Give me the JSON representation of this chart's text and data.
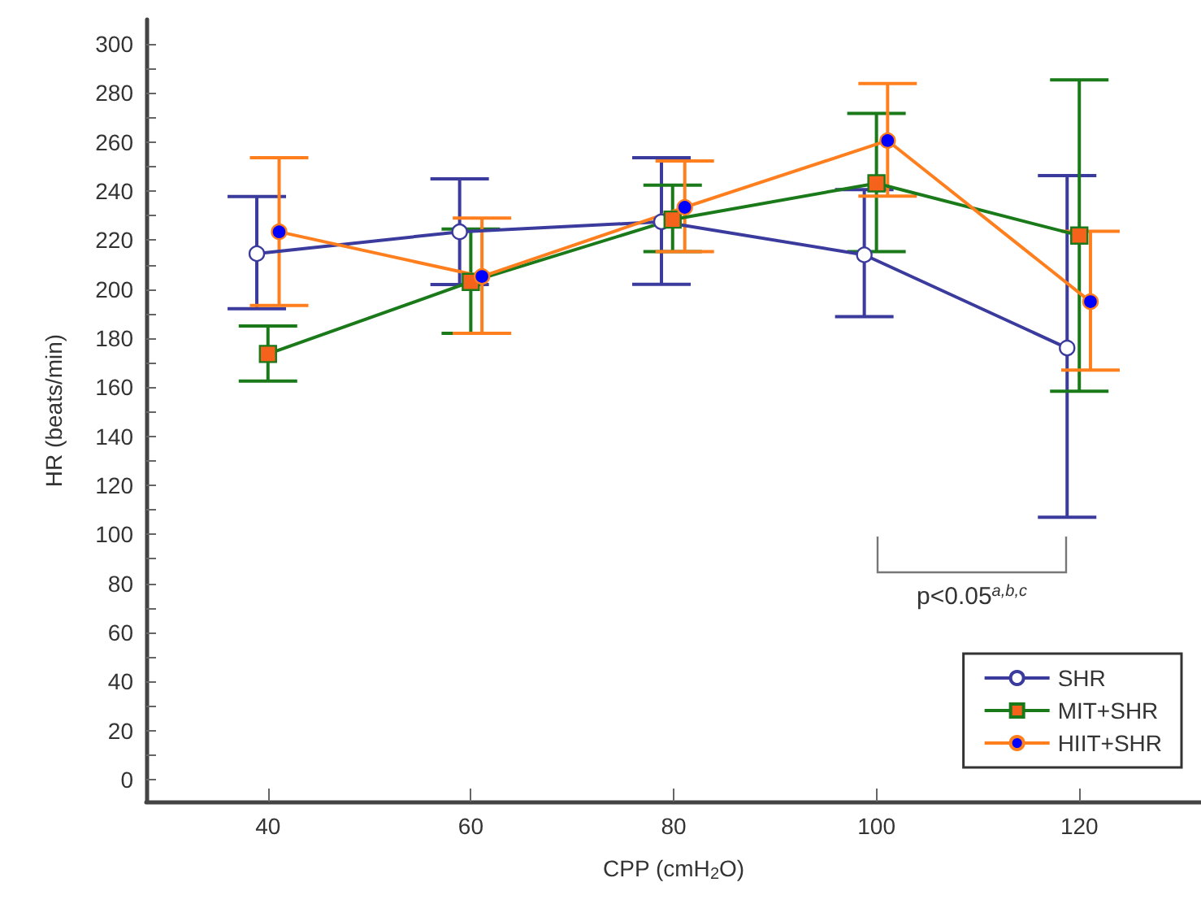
{
  "chart_data": {
    "type": "line",
    "xlabel": "CPP (cmH$_{2}$O)",
    "ylabel": "HR (beats/min)",
    "xlim": [
      28,
      132
    ],
    "xticks": [
      40,
      60,
      80,
      100,
      120
    ],
    "ylim": [
      -9,
      310
    ],
    "yticks": [
      0,
      {
        "value": 10,
        "label": null
      },
      20,
      {
        "value": 30,
        "label": null
      },
      40,
      {
        "value": 50,
        "label": null
      },
      60,
      {
        "value": 70,
        "label": null
      },
      80,
      {
        "value": 90,
        "label": null
      },
      100,
      {
        "value": 110,
        "label": null
      },
      120,
      {
        "value": 130,
        "label": null
      },
      140,
      {
        "value": 150,
        "label": null
      },
      160,
      {
        "value": 170,
        "label": null
      },
      180,
      {
        "value": 190,
        "label": null
      },
      200,
      {
        "value": 210,
        "label": null
      },
      220,
      {
        "value": 230,
        "label": null
      },
      240,
      {
        "value": 250,
        "label": null
      },
      260,
      {
        "value": 270,
        "label": null
      },
      280,
      {
        "value": 290,
        "label": null
      },
      300
    ],
    "grid": false,
    "legend": "bottom right",
    "line_style": "solid",
    "series": [
      {
        "name": "SHR",
        "color": "#3b3b9e",
        "marker": "circle",
        "colors": [
          "#ffffff",
          "#ffffff",
          "#ffffff",
          "#ffffff",
          "#ffffff"
        ],
        "x": [
          38.9,
          58.9,
          78.8,
          98.8,
          118.8
        ],
        "values": [
          214.5,
          223.4,
          227.5,
          214,
          176
        ],
        "errors": [
          [
            192,
            237.8
          ],
          [
            201.9,
            245
          ],
          [
            202,
            253.6
          ],
          [
            188.8,
            240.6
          ],
          [
            107,
            246.3
          ]
        ]
      },
      {
        "name": "MIT+SHR",
        "color": "#1a7a1a",
        "marker": "square",
        "colors": [
          "#f4621c",
          "#f4621c",
          "#f4621c",
          "#f4621c",
          "#f4621c"
        ],
        "x": [
          40,
          60,
          79.9,
          100,
          120
        ],
        "values": [
          173.6,
          203,
          228.4,
          243.2,
          221.9
        ],
        "errors": [
          [
            162.5,
            185
          ],
          [
            182,
            224.5
          ],
          [
            215.3,
            242.4
          ],
          [
            215.3,
            271.7
          ],
          [
            158.4,
            285.4
          ]
        ]
      },
      {
        "name": "HIIT+SHR",
        "color": "#ff7f1e",
        "marker": "circle",
        "colors": [
          "#0000ff",
          "#0000ff",
          "#0000ff",
          "#0000ff",
          "#0000ff"
        ],
        "x": [
          41.1,
          61.1,
          81.1,
          101.1,
          121.1
        ],
        "values": [
          223.4,
          205.2,
          233.4,
          260.6,
          194.9
        ],
        "errors": [
          [
            193.4,
            253.6
          ],
          [
            182,
            229
          ],
          [
            215.3,
            252.3
          ],
          [
            238,
            283.9
          ],
          [
            167,
            223.6
          ]
        ]
      }
    ],
    "annotations": [
      "p<0.05$^{a,b,c}$"
    ]
  }
}
